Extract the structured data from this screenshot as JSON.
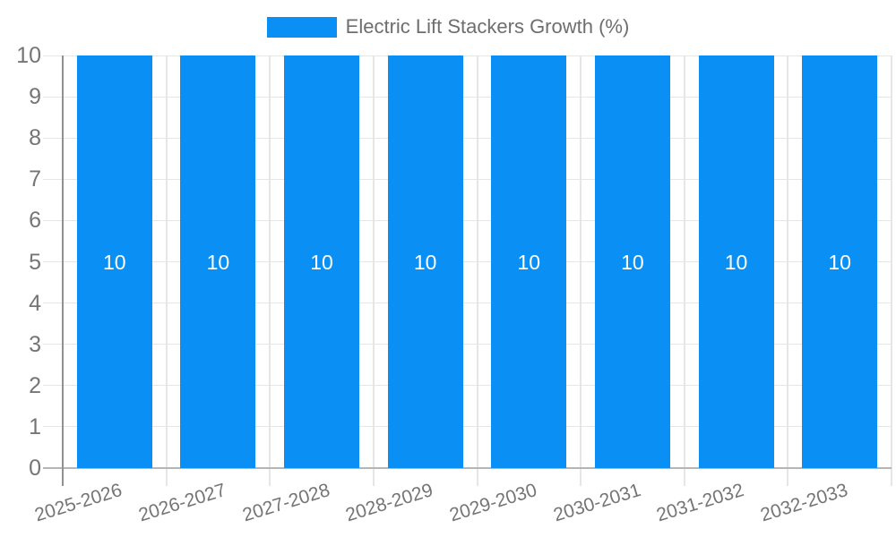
{
  "chart_data": {
    "type": "bar",
    "title": "Electric Lift Stackers Growth (%)",
    "categories": [
      "2025-2026",
      "2026-2027",
      "2027-2028",
      "2028-2029",
      "2029-2030",
      "2030-2031",
      "2031-2032",
      "2032-2033"
    ],
    "series": [
      {
        "name": "Electric Lift Stackers Growth (%)",
        "color": "#0a90f5",
        "values": [
          10,
          10,
          10,
          10,
          10,
          10,
          10,
          10
        ]
      }
    ],
    "bar_value_labels": [
      "10",
      "10",
      "10",
      "10",
      "10",
      "10",
      "10",
      "10"
    ],
    "xlabel": "",
    "ylabel": "",
    "ylim": [
      0,
      10
    ],
    "yticks": [
      0,
      1,
      2,
      3,
      4,
      5,
      6,
      7,
      8,
      9,
      10
    ],
    "grid": true,
    "legend": {
      "position": "top",
      "entries": [
        {
          "label": "Electric Lift Stackers Growth (%)",
          "color": "#0a90f5"
        }
      ]
    },
    "colors": {
      "bar": "#0a90f5",
      "bar_label_text": "#ffffff",
      "axis_text": "#757575",
      "legend_text": "#6e6e6e",
      "gridline": "#e6e6e6",
      "axis_line": "#919191",
      "baseline": "#b5b5b5",
      "background": "#ffffff"
    }
  }
}
